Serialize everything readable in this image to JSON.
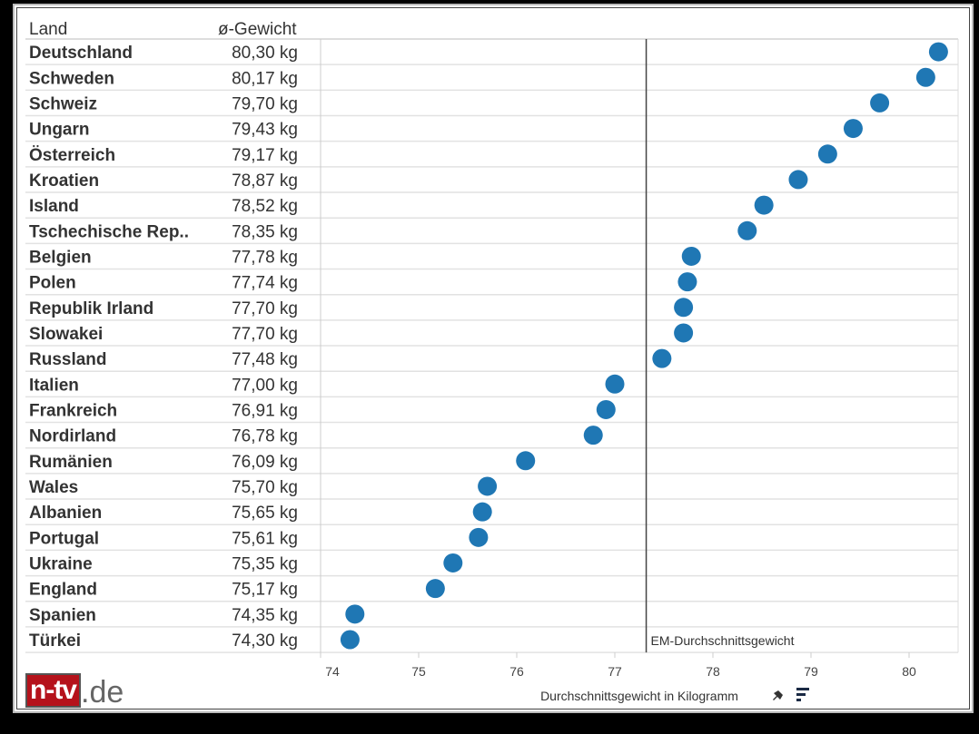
{
  "chart_data": {
    "type": "scatter",
    "title": "",
    "column_headers": [
      "Land",
      "ø-Gewicht"
    ],
    "categories": [
      "Deutschland",
      "Schweden",
      "Schweiz",
      "Ungarn",
      "Österreich",
      "Kroatien",
      "Island",
      "Tschechische Rep..",
      "Belgien",
      "Polen",
      "Republik Irland",
      "Slowakei",
      "Russland",
      "Italien",
      "Frankreich",
      "Nordirland",
      "Rumänien",
      "Wales",
      "Albanien",
      "Portugal",
      "Ukraine",
      "England",
      "Spanien",
      "Türkei"
    ],
    "values": [
      80.3,
      80.17,
      79.7,
      79.43,
      79.17,
      78.87,
      78.52,
      78.35,
      77.78,
      77.74,
      77.7,
      77.7,
      77.48,
      77.0,
      76.91,
      76.78,
      76.09,
      75.7,
      75.65,
      75.61,
      75.35,
      75.17,
      74.35,
      74.3
    ],
    "value_labels": [
      "80,30 kg",
      "80,17 kg",
      "79,70 kg",
      "79,43 kg",
      "79,17 kg",
      "78,87 kg",
      "78,52 kg",
      "78,35 kg",
      "77,78 kg",
      "77,74 kg",
      "77,70 kg",
      "77,70 kg",
      "77,48 kg",
      "77,00 kg",
      "76,91 kg",
      "76,78 kg",
      "76,09 kg",
      "75,70 kg",
      "75,65 kg",
      "75,61 kg",
      "75,35 kg",
      "75,17 kg",
      "74,35 kg",
      "74,30 kg"
    ],
    "xlabel": "Durchschnittsgewicht in Kilogramm",
    "xlim": [
      74,
      80.5
    ],
    "xticks": [
      "74",
      "75",
      "76",
      "77",
      "78",
      "79",
      "80"
    ],
    "reference_line": {
      "value": 77.32,
      "label": "EM-Durchschnittsgewicht"
    },
    "dot_color": "#1f77b4",
    "grid": false
  },
  "logo": {
    "brand": "n-tv",
    "suffix": ".de"
  }
}
